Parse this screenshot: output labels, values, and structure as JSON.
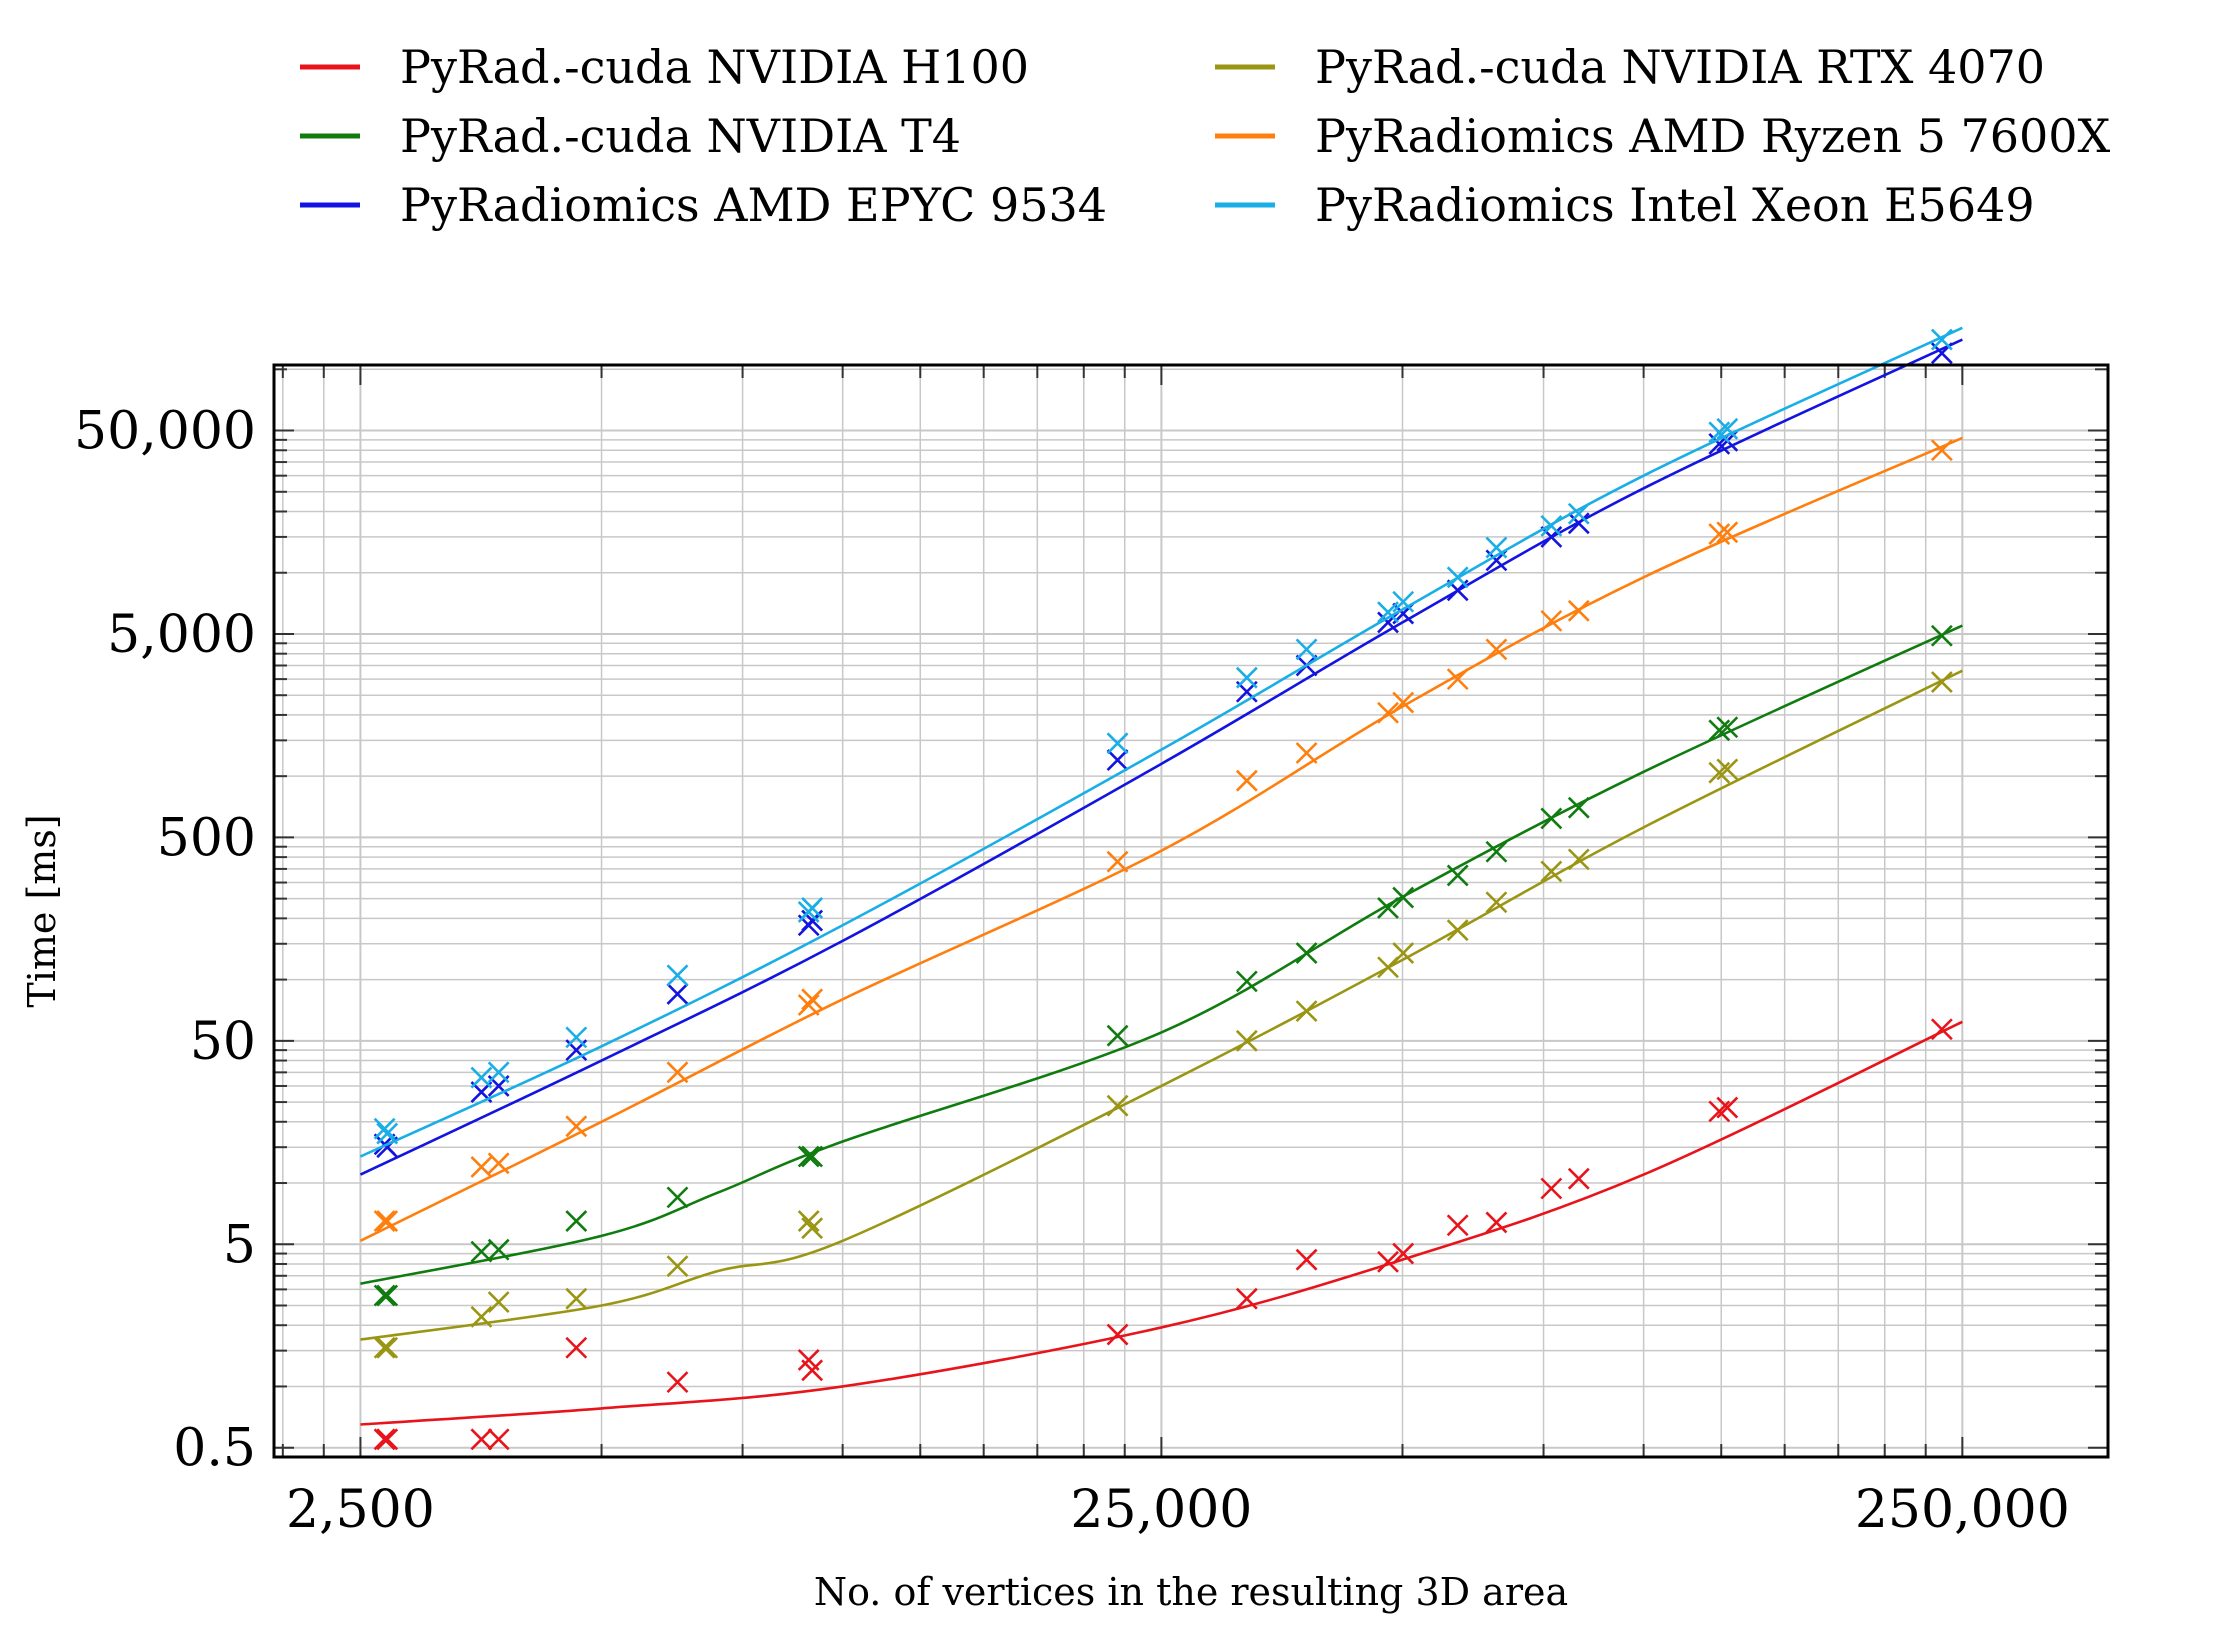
{
  "chart_data": {
    "type": "line",
    "title": "",
    "xlabel": "No. of vertices in the resulting 3D area",
    "ylabel": "Time [ms]",
    "xscale": "log",
    "yscale": "log",
    "xlim": [
      1950,
      380000
    ],
    "ylim": [
      0.45,
      105000
    ],
    "xticks": [
      2500,
      25000,
      250000
    ],
    "xtick_labels": [
      "2,500",
      "25,000",
      "250,000"
    ],
    "yticks": [
      0.5,
      5,
      50,
      500,
      5000,
      50000
    ],
    "ytick_labels": [
      "0.5",
      "5",
      "50",
      "500",
      "5,000",
      "50,000"
    ],
    "grid": true,
    "legend_position": "top",
    "legend_columns": 2,
    "series": [
      {
        "name": "PyRad.-cuda NVIDIA H100",
        "color": "#e8141b",
        "marker": "x",
        "points": [
          [
            2680,
            0.55
          ],
          [
            2700,
            0.55
          ],
          [
            3540,
            0.55
          ],
          [
            3720,
            0.55
          ],
          [
            4650,
            1.55
          ],
          [
            6220,
            1.05
          ],
          [
            9070,
            1.35
          ],
          [
            9160,
            1.2
          ],
          [
            22040,
            1.8
          ],
          [
            31960,
            2.7
          ],
          [
            37950,
            4.2
          ],
          [
            47960,
            4.1
          ],
          [
            50100,
            4.5
          ],
          [
            58600,
            6.2
          ],
          [
            65500,
            6.4
          ],
          [
            76700,
            9.4
          ],
          [
            83000,
            10.5
          ],
          [
            124300,
            22.5
          ],
          [
            127200,
            23.5
          ],
          [
            235700,
            57
          ]
        ],
        "fit": [
          [
            2500,
            0.65
          ],
          [
            5000,
            0.78
          ],
          [
            10000,
            1.0
          ],
          [
            25000,
            1.95
          ],
          [
            50000,
            4.2
          ],
          [
            100000,
            11
          ],
          [
            250000,
            62
          ]
        ]
      },
      {
        "name": "PyRad.-cuda NVIDIA T4",
        "color": "#107c10",
        "marker": "x",
        "points": [
          [
            2680,
            2.8
          ],
          [
            2700,
            2.8
          ],
          [
            3540,
            4.6
          ],
          [
            3720,
            4.7
          ],
          [
            4650,
            6.5
          ],
          [
            6220,
            8.5
          ],
          [
            9070,
            13.5
          ],
          [
            9160,
            13.5
          ],
          [
            22040,
            53
          ],
          [
            31960,
            98
          ],
          [
            37950,
            135
          ],
          [
            47960,
            225
          ],
          [
            50100,
            253
          ],
          [
            58600,
            325
          ],
          [
            65500,
            425
          ],
          [
            76700,
            620
          ],
          [
            83000,
            700
          ],
          [
            124300,
            1680
          ],
          [
            127200,
            1740
          ],
          [
            235700,
            4900
          ]
        ],
        "fit": [
          [
            2500,
            3.2
          ],
          [
            5000,
            5.5
          ],
          [
            7000,
            9
          ],
          [
            10000,
            16
          ],
          [
            25000,
            55
          ],
          [
            50000,
            255
          ],
          [
            100000,
            1050
          ],
          [
            250000,
            5500
          ]
        ]
      },
      {
        "name": "PyRadiomics AMD EPYC 9534",
        "color": "#1414e0",
        "marker": "x",
        "points": [
          [
            2680,
            15.5
          ],
          [
            2700,
            15.0
          ],
          [
            3540,
            28
          ],
          [
            3720,
            30
          ],
          [
            4650,
            45
          ],
          [
            6220,
            85
          ],
          [
            9070,
            185
          ],
          [
            9160,
            195
          ],
          [
            22040,
            1200
          ],
          [
            31960,
            2600
          ],
          [
            37950,
            3500
          ],
          [
            47960,
            5700
          ],
          [
            50100,
            6300
          ],
          [
            58600,
            8200
          ],
          [
            65500,
            11500
          ],
          [
            76700,
            15000
          ],
          [
            83000,
            17500
          ],
          [
            124300,
            43000
          ],
          [
            127200,
            44500
          ],
          [
            235700,
            120000
          ]
        ],
        "fit": [
          [
            2500,
            11
          ],
          [
            5000,
            40
          ],
          [
            10000,
            155
          ],
          [
            25000,
            1150
          ],
          [
            50000,
            5700
          ],
          [
            100000,
            26000
          ],
          [
            250000,
            140000
          ]
        ]
      },
      {
        "name": "PyRad.-cuda NVIDIA RTX 4070",
        "color": "#9a9614",
        "marker": "x",
        "points": [
          [
            2680,
            1.55
          ],
          [
            2700,
            1.55
          ],
          [
            3540,
            2.2
          ],
          [
            3720,
            2.6
          ],
          [
            4650,
            2.7
          ],
          [
            6220,
            3.9
          ],
          [
            9070,
            6.5
          ],
          [
            9160,
            6.0
          ],
          [
            22040,
            24
          ],
          [
            31960,
            50
          ],
          [
            37950,
            70
          ],
          [
            47960,
            115
          ],
          [
            50100,
            135
          ],
          [
            58600,
            175
          ],
          [
            65500,
            240
          ],
          [
            76700,
            340
          ],
          [
            83000,
            390
          ],
          [
            124300,
            1040
          ],
          [
            127200,
            1080
          ],
          [
            235700,
            2900
          ]
        ],
        "fit": [
          [
            2500,
            1.7
          ],
          [
            5000,
            2.5
          ],
          [
            7000,
            3.7
          ],
          [
            10000,
            5.2
          ],
          [
            25000,
            30
          ],
          [
            50000,
            125
          ],
          [
            100000,
            560
          ],
          [
            250000,
            3300
          ]
        ]
      },
      {
        "name": "PyRadiomics AMD Ryzen 5 7600X",
        "color": "#ff7f0e",
        "marker": "x",
        "points": [
          [
            2680,
            6.5
          ],
          [
            2700,
            6.5
          ],
          [
            3540,
            12
          ],
          [
            3720,
            12.5
          ],
          [
            4650,
            19
          ],
          [
            6220,
            35
          ],
          [
            9070,
            75
          ],
          [
            9160,
            80
          ],
          [
            22040,
            380
          ],
          [
            31960,
            950
          ],
          [
            37950,
            1300
          ],
          [
            47960,
            2050
          ],
          [
            50100,
            2300
          ],
          [
            58600,
            3000
          ],
          [
            65500,
            4200
          ],
          [
            76700,
            5800
          ],
          [
            83000,
            6500
          ],
          [
            124300,
            15500
          ],
          [
            127200,
            15800
          ],
          [
            235700,
            40000
          ]
        ],
        "fit": [
          [
            2500,
            5.2
          ],
          [
            5000,
            20
          ],
          [
            10000,
            80
          ],
          [
            25000,
            430
          ],
          [
            50000,
            2200
          ],
          [
            100000,
            9500
          ],
          [
            250000,
            46000
          ]
        ]
      },
      {
        "name": "PyRadiomics Intel Xeon E5649",
        "color": "#1aaee6",
        "marker": "x",
        "points": [
          [
            2680,
            18.5
          ],
          [
            2700,
            17.5
          ],
          [
            3540,
            33
          ],
          [
            3720,
            35
          ],
          [
            4650,
            52
          ],
          [
            6220,
            105
          ],
          [
            9070,
            215
          ],
          [
            9160,
            225
          ],
          [
            22040,
            1450
          ],
          [
            31960,
            3050
          ],
          [
            37950,
            4200
          ],
          [
            47960,
            6400
          ],
          [
            50100,
            7200
          ],
          [
            58600,
            9500
          ],
          [
            65500,
            13300
          ],
          [
            76700,
            17000
          ],
          [
            83000,
            19500
          ],
          [
            124300,
            49000
          ],
          [
            127200,
            51000
          ],
          [
            235700,
            140000
          ]
        ],
        "fit": [
          [
            2500,
            13.5
          ],
          [
            5000,
            47
          ],
          [
            10000,
            185
          ],
          [
            25000,
            1350
          ],
          [
            50000,
            6600
          ],
          [
            100000,
            30000
          ],
          [
            250000,
            160000
          ]
        ]
      }
    ]
  }
}
